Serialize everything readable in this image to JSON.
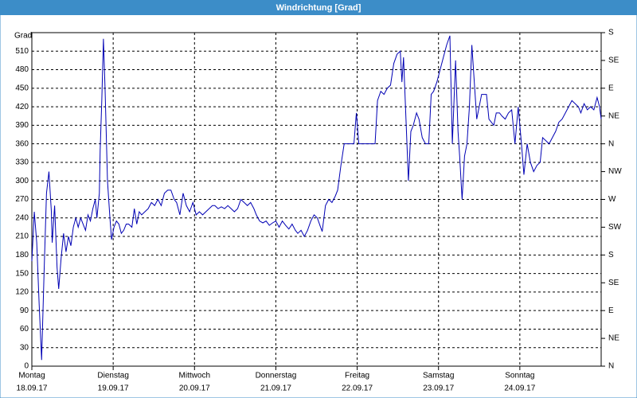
{
  "window_title": "Windrichtung [Grad]",
  "chart_data": {
    "type": "line",
    "ylabel": "Grad",
    "xlim": [
      0,
      7
    ],
    "xticks": [
      {
        "value": 0,
        "label": "Montag"
      },
      {
        "value": 1,
        "label": "Dienstag"
      },
      {
        "value": 2,
        "label": "Mittwoch"
      },
      {
        "value": 3,
        "label": "Donnerstag"
      },
      {
        "value": 4,
        "label": "Freitag"
      },
      {
        "value": 5,
        "label": "Samstag"
      },
      {
        "value": 6,
        "label": "Sonntag"
      }
    ],
    "xtick_dates": [
      "18.09.17",
      "19.09.17",
      "20.09.17",
      "21.09.17",
      "22.09.17",
      "23.09.17",
      "24.09.17"
    ],
    "ylim": [
      0,
      540
    ],
    "yticks": [
      0,
      30,
      60,
      90,
      120,
      150,
      180,
      210,
      240,
      270,
      300,
      330,
      360,
      390,
      420,
      450,
      480,
      510
    ],
    "y2lim": [
      0,
      540
    ],
    "y2ticks": [
      {
        "value": 0,
        "label": "N"
      },
      {
        "value": 45,
        "label": "NE"
      },
      {
        "value": 90,
        "label": "E"
      },
      {
        "value": 135,
        "label": "SE"
      },
      {
        "value": 180,
        "label": "S"
      },
      {
        "value": 225,
        "label": "SW"
      },
      {
        "value": 270,
        "label": "W"
      },
      {
        "value": 315,
        "label": "NW"
      },
      {
        "value": 360,
        "label": "N"
      },
      {
        "value": 405,
        "label": "NE"
      },
      {
        "value": 450,
        "label": "E"
      },
      {
        "value": 495,
        "label": "SE"
      },
      {
        "value": 540,
        "label": "S"
      }
    ],
    "grid": true,
    "series": [
      {
        "color": "#0000b4",
        "x": [
          0,
          0.03,
          0.06,
          0.09,
          0.12,
          0.15,
          0.18,
          0.21,
          0.24,
          0.25,
          0.28,
          0.31,
          0.33,
          0.36,
          0.39,
          0.42,
          0.45,
          0.48,
          0.51,
          0.54,
          0.57,
          0.6,
          0.63,
          0.66,
          0.69,
          0.72,
          0.75,
          0.78,
          0.8,
          0.83,
          0.84,
          0.86,
          0.88,
          0.9,
          0.93,
          0.96,
          0.98,
          1.01,
          1.04,
          1.07,
          1.1,
          1.13,
          1.16,
          1.19,
          1.23,
          1.26,
          1.29,
          1.32,
          1.35,
          1.39,
          1.43,
          1.47,
          1.51,
          1.55,
          1.59,
          1.63,
          1.67,
          1.71,
          1.75,
          1.78,
          1.82,
          1.86,
          1.9,
          1.94,
          1.98,
          2.02,
          2.06,
          2.1,
          2.14,
          2.18,
          2.22,
          2.25,
          2.29,
          2.33,
          2.37,
          2.41,
          2.45,
          2.49,
          2.53,
          2.57,
          2.61,
          2.65,
          2.69,
          2.73,
          2.76,
          2.8,
          2.84,
          2.88,
          2.92,
          2.96,
          3,
          3.04,
          3.08,
          3.12,
          3.16,
          3.2,
          3.24,
          3.27,
          3.31,
          3.35,
          3.39,
          3.43,
          3.47,
          3.51,
          3.55,
          3.57,
          3.61,
          3.65,
          3.69,
          3.73,
          3.76,
          3.8,
          3.84,
          3.88,
          3.92,
          3.96,
          3.99,
          4.02,
          4.06,
          4.1,
          4.14,
          4.18,
          4.22,
          4.25,
          4.29,
          4.33,
          4.37,
          4.41,
          4.45,
          4.49,
          4.53,
          4.55,
          4.57,
          4.6,
          4.63,
          4.66,
          4.69,
          4.73,
          4.76,
          4.8,
          4.84,
          4.88,
          4.91,
          4.94,
          4.98,
          5.02,
          5.06,
          5.1,
          5.14,
          5.17,
          5.21,
          5.24,
          5.26,
          5.29,
          5.32,
          5.35,
          5.38,
          5.41,
          5.44,
          5.47,
          5.5,
          5.53,
          5.56,
          5.59,
          5.62,
          5.65,
          5.68,
          5.71,
          5.75,
          5.78,
          5.82,
          5.86,
          5.9,
          5.94,
          5.98,
          6.02,
          6.05,
          6.09,
          6.13,
          6.17,
          6.21,
          6.25,
          6.28,
          6.32,
          6.36,
          6.4,
          6.44,
          6.48,
          6.52,
          6.56,
          6.6,
          6.64,
          6.68,
          6.72,
          6.75,
          6.79,
          6.83,
          6.87,
          6.91,
          6.95,
          6.98,
          7
        ],
        "values": [
          170,
          250,
          200,
          100,
          10,
          150,
          280,
          315,
          250,
          200,
          260,
          160,
          125,
          175,
          215,
          185,
          210,
          195,
          225,
          240,
          225,
          240,
          230,
          220,
          245,
          235,
          255,
          270,
          240,
          280,
          350,
          430,
          530,
          450,
          300,
          240,
          205,
          225,
          235,
          230,
          215,
          220,
          230,
          230,
          225,
          255,
          230,
          250,
          245,
          250,
          255,
          265,
          260,
          270,
          260,
          280,
          285,
          285,
          270,
          265,
          245,
          280,
          260,
          250,
          265,
          245,
          250,
          245,
          250,
          255,
          260,
          260,
          255,
          258,
          255,
          260,
          255,
          250,
          255,
          270,
          265,
          260,
          265,
          255,
          245,
          235,
          232,
          235,
          228,
          232,
          235,
          225,
          235,
          228,
          222,
          230,
          220,
          215,
          220,
          210,
          220,
          235,
          245,
          240,
          225,
          218,
          260,
          270,
          265,
          275,
          285,
          325,
          360,
          360,
          360,
          360,
          410,
          360,
          360,
          360,
          360,
          360,
          360,
          430,
          445,
          440,
          450,
          455,
          490,
          505,
          510,
          460,
          500,
          400,
          300,
          380,
          390,
          410,
          400,
          370,
          360,
          360,
          440,
          445,
          460,
          480,
          500,
          520,
          535,
          360,
          495,
          380,
          340,
          270,
          340,
          360,
          420,
          520,
          460,
          400,
          420,
          440,
          440,
          440,
          400,
          395,
          390,
          410,
          410,
          405,
          400,
          410,
          415,
          360,
          420,
          360,
          310,
          360,
          330,
          315,
          325,
          330,
          370,
          365,
          360,
          370,
          380,
          395,
          400,
          410,
          420,
          430,
          425,
          420,
          410,
          425,
          415,
          420,
          415,
          435,
          420,
          400
        ]
      }
    ]
  }
}
